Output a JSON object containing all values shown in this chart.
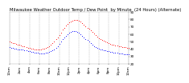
{
  "title": "Milwaukee Weather Outdoor Temp / Dew Point  by Minute  (24 Hours) (Alternate)",
  "bg_color": "#ffffff",
  "plot_bg_color": "#ffffff",
  "text_color": "#000000",
  "grid_color": "#aaaaaa",
  "temp_color": "#ff0000",
  "dew_color": "#0000ff",
  "ylim": [
    20,
    90
  ],
  "xlim": [
    0,
    1440
  ],
  "yticks": [
    20,
    30,
    40,
    50,
    60,
    70,
    80,
    90
  ],
  "xtick_positions": [
    0,
    120,
    240,
    360,
    480,
    600,
    720,
    840,
    960,
    1080,
    1200,
    1320,
    1440
  ],
  "xtick_labels": [
    "12am",
    "2am",
    "4am",
    "6am",
    "8am",
    "10am",
    "12pm",
    "2pm",
    "4pm",
    "6pm",
    "8pm",
    "10pm",
    "12am"
  ],
  "temp_data": [
    [
      0,
      50
    ],
    [
      20,
      49
    ],
    [
      40,
      48
    ],
    [
      60,
      48
    ],
    [
      80,
      47
    ],
    [
      100,
      46
    ],
    [
      120,
      46
    ],
    [
      140,
      45
    ],
    [
      160,
      44
    ],
    [
      180,
      44
    ],
    [
      200,
      43
    ],
    [
      220,
      42
    ],
    [
      240,
      42
    ],
    [
      260,
      41
    ],
    [
      280,
      41
    ],
    [
      300,
      40
    ],
    [
      320,
      40
    ],
    [
      340,
      40
    ],
    [
      360,
      40
    ],
    [
      380,
      40
    ],
    [
      400,
      41
    ],
    [
      420,
      41
    ],
    [
      440,
      42
    ],
    [
      460,
      43
    ],
    [
      480,
      44
    ],
    [
      500,
      46
    ],
    [
      520,
      48
    ],
    [
      540,
      50
    ],
    [
      560,
      53
    ],
    [
      580,
      56
    ],
    [
      600,
      59
    ],
    [
      620,
      62
    ],
    [
      640,
      66
    ],
    [
      660,
      69
    ],
    [
      680,
      72
    ],
    [
      700,
      74
    ],
    [
      720,
      76
    ],
    [
      740,
      77
    ],
    [
      760,
      78
    ],
    [
      780,
      79
    ],
    [
      800,
      79
    ],
    [
      820,
      79
    ],
    [
      840,
      78
    ],
    [
      860,
      77
    ],
    [
      880,
      75
    ],
    [
      900,
      73
    ],
    [
      920,
      71
    ],
    [
      940,
      69
    ],
    [
      960,
      67
    ],
    [
      980,
      65
    ],
    [
      1000,
      63
    ],
    [
      1020,
      61
    ],
    [
      1040,
      59
    ],
    [
      1060,
      57
    ],
    [
      1080,
      55
    ],
    [
      1100,
      53
    ],
    [
      1120,
      52
    ],
    [
      1140,
      51
    ],
    [
      1160,
      50
    ],
    [
      1180,
      49
    ],
    [
      1200,
      48
    ],
    [
      1220,
      47
    ],
    [
      1240,
      46
    ],
    [
      1260,
      46
    ],
    [
      1280,
      45
    ],
    [
      1300,
      45
    ],
    [
      1320,
      44
    ],
    [
      1340,
      44
    ],
    [
      1360,
      43
    ],
    [
      1380,
      43
    ],
    [
      1400,
      43
    ],
    [
      1420,
      42
    ],
    [
      1440,
      42
    ]
  ],
  "dew_data": [
    [
      0,
      43
    ],
    [
      20,
      42
    ],
    [
      40,
      42
    ],
    [
      60,
      41
    ],
    [
      80,
      41
    ],
    [
      100,
      40
    ],
    [
      120,
      40
    ],
    [
      140,
      39
    ],
    [
      160,
      39
    ],
    [
      180,
      38
    ],
    [
      200,
      38
    ],
    [
      220,
      37
    ],
    [
      240,
      37
    ],
    [
      260,
      36
    ],
    [
      280,
      36
    ],
    [
      300,
      35
    ],
    [
      320,
      35
    ],
    [
      340,
      35
    ],
    [
      360,
      34
    ],
    [
      380,
      34
    ],
    [
      400,
      34
    ],
    [
      420,
      34
    ],
    [
      440,
      35
    ],
    [
      460,
      35
    ],
    [
      480,
      36
    ],
    [
      500,
      37
    ],
    [
      520,
      38
    ],
    [
      540,
      40
    ],
    [
      560,
      42
    ],
    [
      580,
      44
    ],
    [
      600,
      47
    ],
    [
      620,
      50
    ],
    [
      640,
      53
    ],
    [
      660,
      56
    ],
    [
      680,
      58
    ],
    [
      700,
      60
    ],
    [
      720,
      62
    ],
    [
      740,
      63
    ],
    [
      760,
      64
    ],
    [
      780,
      64
    ],
    [
      800,
      64
    ],
    [
      820,
      63
    ],
    [
      840,
      62
    ],
    [
      860,
      60
    ],
    [
      880,
      58
    ],
    [
      900,
      56
    ],
    [
      920,
      54
    ],
    [
      940,
      52
    ],
    [
      960,
      50
    ],
    [
      980,
      48
    ],
    [
      1000,
      46
    ],
    [
      1020,
      44
    ],
    [
      1040,
      43
    ],
    [
      1060,
      42
    ],
    [
      1080,
      41
    ],
    [
      1100,
      40
    ],
    [
      1120,
      39
    ],
    [
      1140,
      38
    ],
    [
      1160,
      38
    ],
    [
      1180,
      37
    ],
    [
      1200,
      37
    ],
    [
      1220,
      36
    ],
    [
      1240,
      36
    ],
    [
      1260,
      35
    ],
    [
      1280,
      35
    ],
    [
      1300,
      35
    ],
    [
      1320,
      34
    ],
    [
      1340,
      34
    ],
    [
      1360,
      34
    ],
    [
      1380,
      33
    ],
    [
      1400,
      33
    ],
    [
      1420,
      33
    ],
    [
      1440,
      33
    ]
  ],
  "title_fontsize": 3.8,
  "tick_fontsize": 3.0
}
